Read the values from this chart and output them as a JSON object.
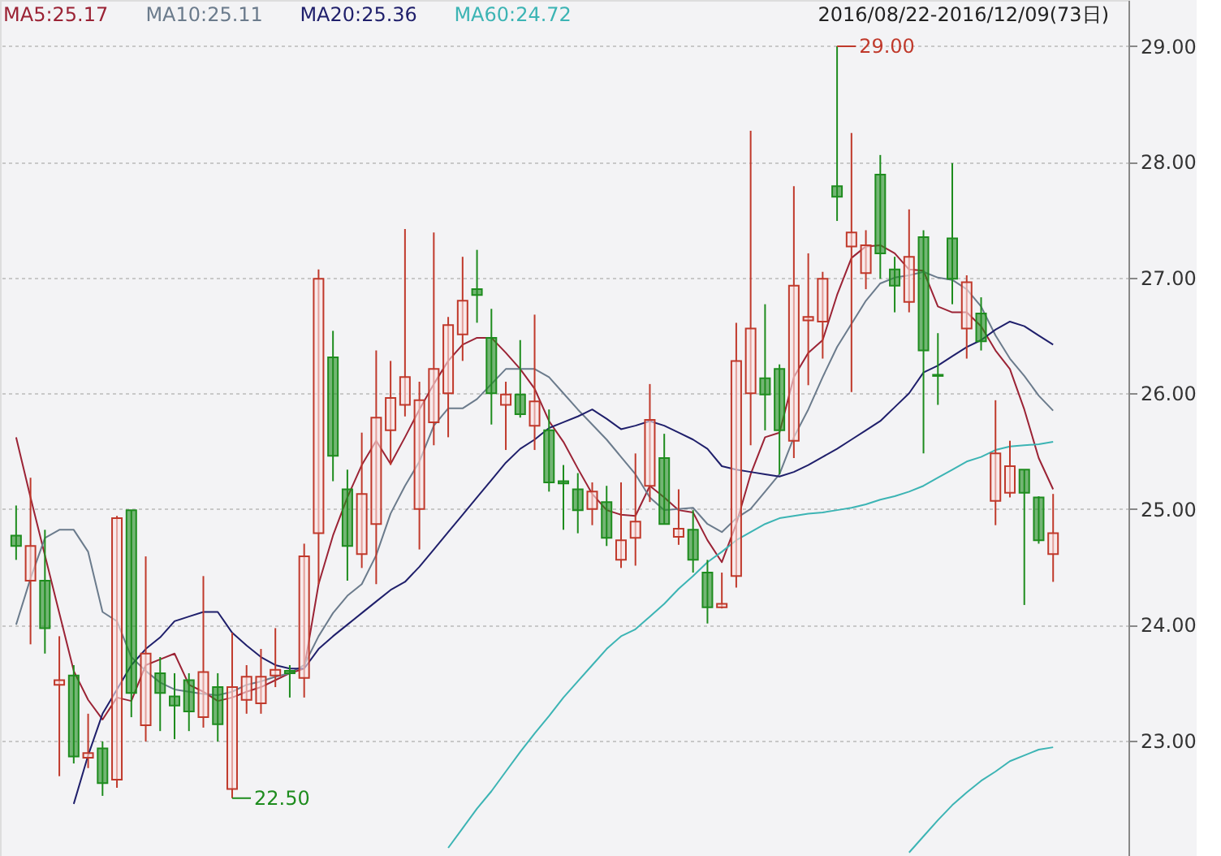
{
  "chart_data": {
    "type": "candlestick",
    "categories": [
      null,
      null,
      null,
      null,
      null,
      null,
      null,
      null,
      null,
      null,
      null,
      null,
      null,
      null,
      null,
      null,
      null,
      null,
      null,
      null,
      null,
      null,
      null,
      null,
      null,
      null,
      null,
      null,
      null,
      null,
      null,
      null,
      null,
      null,
      null,
      null,
      null,
      null,
      null,
      null,
      null,
      null,
      null,
      null,
      null,
      null,
      null,
      null,
      null,
      null,
      null,
      null,
      null,
      null,
      null,
      null,
      null,
      null,
      null,
      null,
      null,
      null,
      null,
      null,
      null,
      null,
      null,
      null,
      null,
      null,
      null,
      null,
      null
    ],
    "ohlc": [
      [
        24.77,
        25.03,
        24.56,
        24.68
      ],
      [
        24.38,
        25.27,
        23.83,
        24.68
      ],
      [
        24.38,
        24.82,
        23.75,
        23.97
      ],
      [
        23.48,
        23.9,
        22.69,
        23.52
      ],
      [
        23.56,
        23.65,
        22.8,
        22.86
      ],
      [
        22.85,
        23.23,
        22.76,
        22.89
      ],
      [
        22.93,
        22.99,
        22.52,
        22.63
      ],
      [
        22.66,
        24.94,
        22.59,
        24.92
      ],
      [
        24.99,
        24.99,
        23.2,
        23.41
      ],
      [
        23.13,
        24.59,
        22.99,
        23.75
      ],
      [
        23.58,
        23.72,
        23.08,
        23.41
      ],
      [
        23.38,
        23.58,
        23.01,
        23.3
      ],
      [
        23.52,
        23.58,
        23.08,
        23.25
      ],
      [
        23.2,
        24.42,
        23.11,
        23.59
      ],
      [
        23.46,
        23.58,
        22.99,
        23.14
      ],
      [
        22.58,
        23.93,
        22.5,
        23.46
      ],
      [
        23.35,
        23.65,
        23.23,
        23.55
      ],
      [
        23.32,
        23.79,
        23.23,
        23.55
      ],
      [
        23.56,
        23.97,
        23.46,
        23.61
      ],
      [
        23.6,
        23.65,
        23.37,
        23.58
      ],
      [
        23.54,
        24.7,
        23.37,
        24.59
      ],
      [
        24.79,
        27.07,
        24.35,
        26.99
      ],
      [
        26.31,
        26.54,
        25.24,
        25.46
      ],
      [
        25.17,
        25.34,
        24.38,
        24.68
      ],
      [
        24.61,
        25.66,
        24.49,
        25.13
      ],
      [
        24.87,
        26.37,
        24.35,
        25.79
      ],
      [
        25.68,
        26.28,
        25.38,
        25.96
      ],
      [
        25.9,
        27.42,
        25.8,
        26.14
      ],
      [
        25.0,
        26.1,
        24.65,
        25.94
      ],
      [
        25.75,
        27.39,
        25.55,
        26.21
      ],
      [
        26.0,
        26.66,
        25.62,
        26.59
      ],
      [
        26.51,
        27.18,
        26.28,
        26.8
      ],
      [
        26.9,
        27.24,
        26.61,
        26.85
      ],
      [
        26.48,
        26.73,
        25.73,
        26.0
      ],
      [
        25.9,
        26.1,
        25.51,
        25.99
      ],
      [
        25.99,
        26.46,
        25.79,
        25.82
      ],
      [
        25.72,
        26.68,
        25.51,
        25.93
      ],
      [
        25.68,
        25.86,
        25.15,
        25.23
      ],
      [
        25.24,
        25.38,
        24.82,
        25.22
      ],
      [
        25.17,
        25.31,
        24.79,
        24.99
      ],
      [
        25.0,
        25.23,
        24.86,
        25.15
      ],
      [
        25.06,
        25.2,
        24.68,
        24.75
      ],
      [
        24.56,
        25.23,
        24.49,
        24.73
      ],
      [
        24.75,
        25.48,
        24.51,
        24.89
      ],
      [
        25.2,
        26.08,
        25.06,
        25.77
      ],
      [
        25.44,
        25.65,
        24.87,
        24.87
      ],
      [
        24.76,
        25.17,
        24.69,
        24.83
      ],
      [
        24.82,
        24.99,
        24.45,
        24.56
      ],
      [
        24.45,
        24.56,
        24.01,
        24.15
      ],
      [
        24.15,
        24.45,
        24.14,
        24.18
      ],
      [
        24.42,
        26.61,
        24.32,
        26.28
      ],
      [
        26.0,
        28.27,
        25.55,
        26.56
      ],
      [
        26.13,
        26.77,
        25.68,
        25.99
      ],
      [
        26.21,
        26.25,
        25.3,
        25.68
      ],
      [
        25.59,
        27.79,
        25.44,
        26.93
      ],
      [
        26.63,
        27.21,
        26.07,
        26.66
      ],
      [
        26.62,
        27.05,
        26.3,
        26.99
      ],
      [
        27.79,
        29.0,
        27.49,
        27.7
      ],
      [
        27.27,
        28.25,
        26.01,
        27.39
      ],
      [
        27.04,
        27.41,
        26.9,
        27.28
      ],
      [
        27.89,
        28.06,
        26.99,
        27.21
      ],
      [
        27.07,
        27.18,
        26.7,
        26.93
      ],
      [
        26.79,
        27.59,
        26.7,
        27.18
      ],
      [
        27.35,
        27.41,
        25.48,
        26.37
      ],
      [
        26.16,
        26.52,
        25.9,
        26.15
      ],
      [
        27.34,
        27.99,
        26.77,
        26.99
      ],
      [
        26.56,
        27.02,
        26.3,
        26.96
      ],
      [
        26.69,
        26.83,
        26.37,
        26.45
      ],
      [
        25.07,
        25.94,
        24.86,
        25.48
      ],
      [
        25.14,
        25.59,
        25.1,
        25.37
      ],
      [
        25.34,
        25.34,
        24.17,
        25.14
      ],
      [
        25.1,
        25.11,
        24.7,
        24.73
      ],
      [
        24.61,
        25.13,
        24.37,
        24.79
      ]
    ],
    "colors": [
      "#1e8c1e",
      "#c0392b",
      "#1e8c1e",
      "#c0392b",
      "#1e8c1e",
      "#c0392b",
      "#1e8c1e",
      "#c0392b",
      "#1e8c1e",
      "#c0392b",
      "#1e8c1e",
      "#1e8c1e",
      "#1e8c1e",
      "#c0392b",
      "#1e8c1e",
      "#c0392b",
      "#c0392b",
      "#c0392b",
      "#c0392b",
      "#1e8c1e",
      "#c0392b",
      "#c0392b",
      "#1e8c1e",
      "#1e8c1e",
      "#c0392b",
      "#c0392b",
      "#c0392b",
      "#c0392b",
      "#c0392b",
      "#c0392b",
      "#c0392b",
      "#c0392b",
      "#1e8c1e",
      "#1e8c1e",
      "#c0392b",
      "#1e8c1e",
      "#c0392b",
      "#1e8c1e",
      "#1e8c1e",
      "#1e8c1e",
      "#c0392b",
      "#1e8c1e",
      "#c0392b",
      "#c0392b",
      "#c0392b",
      "#1e8c1e",
      "#c0392b",
      "#1e8c1e",
      "#1e8c1e",
      "#c0392b",
      "#c0392b",
      "#c0392b",
      "#1e8c1e",
      "#1e8c1e",
      "#c0392b",
      "#c0392b",
      "#c0392b",
      "#1e8c1e",
      "#c0392b",
      "#c0392b",
      "#1e8c1e",
      "#1e8c1e",
      "#c0392b",
      "#1e8c1e",
      "#1e8c1e",
      "#1e8c1e",
      "#c0392b",
      "#1e8c1e",
      "#c0392b",
      "#c0392b",
      "#1e8c1e",
      "#1e8c1e",
      "#c0392b"
    ],
    "series": [
      {
        "name": "MA5:25.17",
        "type": "line",
        "color": "#9b2335",
        "values": [
          25.62,
          25.1,
          24.6,
          24.1,
          23.6,
          23.35,
          23.18,
          23.37,
          23.34,
          23.65,
          23.7,
          23.75,
          23.48,
          23.42,
          23.34,
          23.37,
          23.42,
          23.46,
          23.52,
          23.58,
          23.62,
          24.35,
          24.77,
          25.1,
          25.38,
          25.59,
          25.39,
          25.62,
          25.86,
          26.08,
          26.28,
          26.42,
          26.48,
          26.48,
          26.35,
          26.21,
          26.04,
          25.76,
          25.58,
          25.35,
          25.13,
          24.99,
          24.95,
          24.94,
          25.2,
          25.1,
          24.99,
          24.97,
          24.73,
          24.54,
          24.87,
          25.3,
          25.62,
          25.66,
          26.14,
          26.35,
          26.46,
          26.85,
          27.17,
          27.27,
          27.28,
          27.21,
          27.07,
          27.06,
          26.75,
          26.7,
          26.7,
          26.58,
          26.37,
          26.21,
          25.86,
          25.44,
          25.17
        ]
      },
      {
        "name": "MA10:25.11",
        "type": "line",
        "color": "#6b7b8c",
        "values": [
          24.0,
          24.4,
          24.75,
          24.82,
          24.82,
          24.63,
          24.11,
          24.03,
          23.72,
          23.6,
          23.5,
          23.44,
          23.42,
          23.4,
          23.39,
          23.42,
          23.48,
          23.51,
          23.55,
          23.58,
          23.65,
          23.9,
          24.1,
          24.25,
          24.35,
          24.6,
          24.96,
          25.2,
          25.41,
          25.72,
          25.87,
          25.87,
          25.95,
          26.08,
          26.21,
          26.21,
          26.21,
          26.14,
          26.0,
          25.86,
          25.73,
          25.6,
          25.45,
          25.3,
          25.1,
          24.99,
          25.0,
          25.01,
          24.87,
          24.8,
          24.92,
          25.0,
          25.15,
          25.3,
          25.62,
          25.86,
          26.14,
          26.4,
          26.6,
          26.8,
          26.95,
          27.0,
          27.02,
          27.05,
          27.0,
          26.98,
          26.9,
          26.75,
          26.5,
          26.3,
          26.15,
          25.98,
          25.85
        ]
      },
      {
        "name": "MA20:25.36",
        "type": "line",
        "color": "#1f1f6b",
        "values": [
          null,
          null,
          null,
          null,
          22.45,
          22.87,
          23.23,
          23.44,
          23.65,
          23.79,
          23.89,
          24.03,
          24.07,
          24.11,
          24.11,
          23.93,
          23.82,
          23.72,
          23.65,
          23.62,
          23.62,
          23.79,
          23.9,
          24.0,
          24.1,
          24.2,
          24.3,
          24.37,
          24.5,
          24.65,
          24.8,
          24.95,
          25.1,
          25.25,
          25.4,
          25.52,
          25.6,
          25.7,
          25.75,
          25.8,
          25.86,
          25.78,
          25.69,
          25.72,
          25.76,
          25.72,
          25.66,
          25.6,
          25.52,
          25.37,
          25.34,
          25.32,
          25.3,
          25.28,
          25.32,
          25.38,
          25.45,
          25.52,
          25.6,
          25.68,
          25.76,
          25.88,
          26.0,
          26.18,
          26.24,
          26.32,
          26.4,
          26.46,
          26.55,
          26.62,
          26.58,
          26.5,
          26.42
        ]
      },
      {
        "name": "MA60:24.72",
        "type": "line",
        "color": "#3cb4b4",
        "values": [
          null,
          null,
          null,
          null,
          null,
          null,
          null,
          null,
          null,
          null,
          null,
          null,
          null,
          null,
          null,
          null,
          null,
          null,
          null,
          null,
          null,
          null,
          null,
          null,
          null,
          null,
          null,
          null,
          null,
          null,
          22.07,
          22.24,
          22.41,
          22.56,
          22.73,
          22.9,
          23.06,
          23.21,
          23.37,
          23.51,
          23.65,
          23.79,
          23.9,
          23.96,
          24.07,
          24.18,
          24.31,
          24.42,
          24.54,
          24.63,
          24.73,
          24.8,
          24.87,
          24.92,
          24.94,
          24.96,
          24.97,
          24.99,
          25.01,
          25.04,
          25.08,
          25.11,
          25.15,
          25.2,
          25.27,
          25.34,
          25.41,
          25.45,
          25.51,
          25.54,
          25.55,
          25.56,
          25.58
        ]
      },
      {
        "type": "line",
        "color": "#3cb4b4",
        "values": [
          null,
          null,
          null,
          null,
          null,
          null,
          null,
          null,
          null,
          null,
          null,
          null,
          null,
          null,
          null,
          null,
          null,
          null,
          null,
          null,
          null,
          null,
          null,
          null,
          null,
          null,
          null,
          null,
          null,
          null,
          null,
          null,
          null,
          null,
          null,
          null,
          null,
          null,
          null,
          null,
          null,
          null,
          null,
          null,
          null,
          null,
          null,
          null,
          null,
          null,
          null,
          null,
          null,
          null,
          null,
          null,
          null,
          null,
          null,
          null,
          null,
          null,
          22.03,
          22.17,
          22.31,
          22.44,
          22.55,
          22.65,
          22.73,
          22.82,
          22.87,
          22.92,
          22.94
        ]
      }
    ],
    "ylim": [
      22.0,
      29.4
    ],
    "yticks": [
      {
        "value": 23,
        "label": "23.00"
      },
      {
        "value": 24,
        "label": "24.00"
      },
      {
        "value": 25,
        "label": "25.00"
      },
      {
        "value": 26,
        "label": "26.00"
      },
      {
        "value": 27,
        "label": "27.00"
      },
      {
        "value": 28,
        "label": "28.00"
      },
      {
        "value": 29,
        "label": "29.00"
      }
    ],
    "grid": "y",
    "legend": "top left",
    "annotations": [
      "29.00",
      "22.50",
      "2016/08/22-2016/12/09(73日)"
    ]
  }
}
